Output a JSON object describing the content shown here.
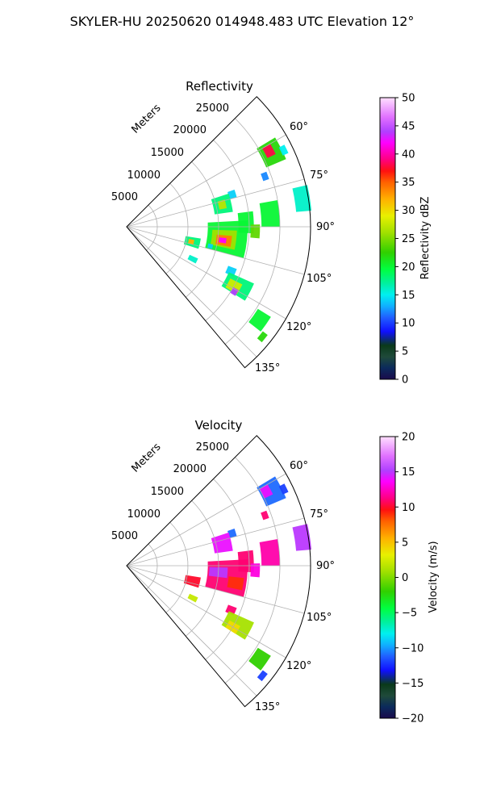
{
  "figure_title": "SKYLER-HU  20250620  014948.483 UTC Elevation 12°",
  "panels": [
    {
      "title": "Reflectivity",
      "range_axis_label": "Meters",
      "range_labels": [
        "5000",
        "10000",
        "15000",
        "20000",
        "25000"
      ],
      "azimuth_labels": [
        "60°",
        "75°",
        "90°",
        "105°",
        "120°",
        "135°"
      ],
      "colorbar_label": "Reflectivity dBZ",
      "colorbar_ticks": [
        "0",
        "5",
        "10",
        "15",
        "20",
        "25",
        "30",
        "35",
        "40",
        "45",
        "50"
      ]
    },
    {
      "title": "Velocity",
      "range_axis_label": "Meters",
      "range_labels": [
        "5000",
        "10000",
        "15000",
        "20000",
        "25000"
      ],
      "azimuth_labels": [
        "60°",
        "75°",
        "90°",
        "105°",
        "120°",
        "135°"
      ],
      "colorbar_label": "Velocity (m/s)",
      "colorbar_ticks": [
        "−20",
        "−15",
        "−10",
        "−5",
        "0",
        "5",
        "10",
        "15",
        "20"
      ]
    }
  ],
  "chart_data": [
    {
      "type": "heatmap",
      "projection": "polar",
      "title": "Reflectivity",
      "theta_range_deg": [
        45,
        140
      ],
      "r_range_m": [
        0,
        30000
      ],
      "r_ticks": [
        5000,
        10000,
        15000,
        20000,
        25000
      ],
      "theta_ticks_deg": [
        60,
        75,
        90,
        105,
        120,
        135
      ],
      "colorbar": {
        "label": "Reflectivity dBZ",
        "range": [
          0,
          50
        ]
      },
      "cells": [
        {
          "az": 63,
          "r": 26500,
          "dr": 3500,
          "daz": 8,
          "value": 22
        },
        {
          "az": 62,
          "r": 26300,
          "dr": 1500,
          "daz": 4,
          "value": 38
        },
        {
          "az": 64,
          "r": 28500,
          "dr": 1000,
          "daz": 3,
          "value": 15
        },
        {
          "az": 70,
          "r": 24000,
          "dr": 1000,
          "daz": 3,
          "value": 12
        },
        {
          "az": 73,
          "r": 18000,
          "dr": 1200,
          "daz": 4,
          "value": 14
        },
        {
          "az": 77,
          "r": 16000,
          "dr": 3000,
          "daz": 10,
          "value": 18
        },
        {
          "az": 77,
          "r": 16000,
          "dr": 1200,
          "daz": 5,
          "value": 27
        },
        {
          "az": 81,
          "r": 29000,
          "dr": 2500,
          "daz": 8,
          "value": 16
        },
        {
          "az": 85,
          "r": 23500,
          "dr": 3000,
          "daz": 10,
          "value": 20
        },
        {
          "az": 88,
          "r": 19500,
          "dr": 2500,
          "daz": 10,
          "value": 20
        },
        {
          "az": 92,
          "r": 21000,
          "dr": 1500,
          "daz": 6,
          "value": 24
        },
        {
          "az": 96,
          "r": 16500,
          "dr": 6500,
          "daz": 18,
          "value": 20
        },
        {
          "az": 97,
          "r": 16000,
          "dr": 4000,
          "daz": 10,
          "value": 26
        },
        {
          "az": 98,
          "r": 16000,
          "dr": 2500,
          "daz": 6,
          "value": 34
        },
        {
          "az": 98,
          "r": 15800,
          "dr": 1200,
          "daz": 3,
          "value": 42
        },
        {
          "az": 103,
          "r": 11000,
          "dr": 2500,
          "daz": 8,
          "value": 18
        },
        {
          "az": 103,
          "r": 10800,
          "dr": 900,
          "daz": 4,
          "value": 32
        },
        {
          "az": 103,
          "r": 14000,
          "dr": 800,
          "daz": 3,
          "value": 14
        },
        {
          "az": 113,
          "r": 18500,
          "dr": 1500,
          "daz": 4,
          "value": 14
        },
        {
          "az": 116,
          "r": 12000,
          "dr": 1500,
          "daz": 4,
          "value": 16
        },
        {
          "az": 118,
          "r": 20500,
          "dr": 4500,
          "daz": 8,
          "value": 18
        },
        {
          "az": 119,
          "r": 20000,
          "dr": 2200,
          "daz": 5,
          "value": 28
        },
        {
          "az": 121,
          "r": 20500,
          "dr": 1000,
          "daz": 3,
          "value": 44
        },
        {
          "az": 125,
          "r": 26500,
          "dr": 2500,
          "daz": 6,
          "value": 20
        },
        {
          "az": 129,
          "r": 28500,
          "dr": 1000,
          "daz": 3,
          "value": 22
        }
      ]
    },
    {
      "type": "heatmap",
      "projection": "polar",
      "title": "Velocity",
      "theta_range_deg": [
        45,
        140
      ],
      "r_range_m": [
        0,
        30000
      ],
      "r_ticks": [
        5000,
        10000,
        15000,
        20000,
        25000
      ],
      "theta_ticks_deg": [
        60,
        75,
        90,
        105,
        120,
        135
      ],
      "colorbar": {
        "label": "Velocity (m/s)",
        "range": [
          -20,
          20
        ]
      },
      "cells": [
        {
          "az": 63,
          "r": 26500,
          "dr": 3500,
          "daz": 8,
          "value": -11
        },
        {
          "az": 62,
          "r": 25800,
          "dr": 1500,
          "daz": 4,
          "value": 14
        },
        {
          "az": 64,
          "r": 28500,
          "dr": 1000,
          "daz": 3,
          "value": -12
        },
        {
          "az": 70,
          "r": 24000,
          "dr": 1000,
          "daz": 3,
          "value": 11
        },
        {
          "az": 73,
          "r": 18000,
          "dr": 1200,
          "daz": 4,
          "value": -11
        },
        {
          "az": 77,
          "r": 16000,
          "dr": 3000,
          "daz": 10,
          "value": 14
        },
        {
          "az": 81,
          "r": 29000,
          "dr": 2500,
          "daz": 8,
          "value": 15
        },
        {
          "az": 85,
          "r": 23500,
          "dr": 3000,
          "daz": 10,
          "value": 12
        },
        {
          "az": 88,
          "r": 19500,
          "dr": 2500,
          "daz": 10,
          "value": 11
        },
        {
          "az": 92,
          "r": 21000,
          "dr": 1500,
          "daz": 6,
          "value": 13
        },
        {
          "az": 96,
          "r": 16500,
          "dr": 6500,
          "daz": 18,
          "value": 11
        },
        {
          "az": 94,
          "r": 15000,
          "dr": 3000,
          "daz": 6,
          "value": 15
        },
        {
          "az": 99,
          "r": 18000,
          "dr": 2500,
          "daz": 6,
          "value": 9
        },
        {
          "az": 103,
          "r": 11000,
          "dr": 2500,
          "daz": 8,
          "value": 10
        },
        {
          "az": 113,
          "r": 18500,
          "dr": 1500,
          "daz": 4,
          "value": 11
        },
        {
          "az": 116,
          "r": 12000,
          "dr": 1500,
          "daz": 4,
          "value": 2
        },
        {
          "az": 118,
          "r": 20500,
          "dr": 4500,
          "daz": 8,
          "value": 1
        },
        {
          "az": 120,
          "r": 20000,
          "dr": 2000,
          "daz": 4,
          "value": 4
        },
        {
          "az": 125,
          "r": 26500,
          "dr": 2500,
          "daz": 6,
          "value": -2
        },
        {
          "az": 129,
          "r": 28500,
          "dr": 1000,
          "daz": 3,
          "value": -12
        }
      ]
    }
  ]
}
